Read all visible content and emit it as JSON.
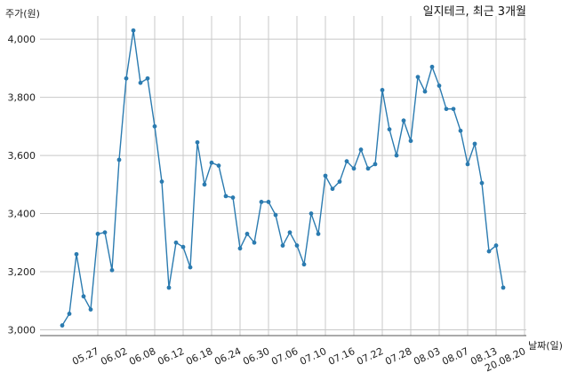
{
  "chart_data": {
    "type": "line",
    "title": "일지테크, 최근 3개월",
    "ylabel": "주가(원)",
    "xlabel": "날짜(일)",
    "ylim": [
      2980,
      4080
    ],
    "yticks": [
      3000,
      3200,
      3400,
      3600,
      3800,
      4000
    ],
    "ytick_labels": [
      "3,000",
      "3,200",
      "3,400",
      "3,600",
      "3,800",
      "4,000"
    ],
    "xtick_labels": [
      "05.27",
      "06.02",
      "06.08",
      "06.12",
      "06.18",
      "06.24",
      "06.30",
      "07.06",
      "07.10",
      "07.16",
      "07.22",
      "07.28",
      "08.03",
      "08.07",
      "08.13",
      "20.08.20"
    ],
    "xtick_index": [
      5,
      9,
      13,
      17,
      21,
      25,
      29,
      33,
      37,
      41,
      45,
      49,
      53,
      57,
      61,
      65
    ],
    "grid": true,
    "series": [
      {
        "values": [
          3015,
          3055,
          3260,
          3115,
          3070,
          3330,
          3335,
          3205,
          3585,
          3865,
          4030,
          3850,
          3865,
          3700,
          3510,
          3145,
          3300,
          3285,
          3215,
          3645,
          3500,
          3575,
          3565,
          3460,
          3455,
          3280,
          3330,
          3300,
          3440,
          3440,
          3395,
          3290,
          3335,
          3290,
          3225,
          3400,
          3330,
          3530,
          3485,
          3510,
          3580,
          3555,
          3620,
          3555,
          3570,
          3825,
          3690,
          3600,
          3720,
          3650,
          3870,
          3820,
          3905,
          3840,
          3760,
          3760,
          3685,
          3570,
          3640,
          3505,
          3270,
          3290,
          3145
        ]
      }
    ]
  }
}
